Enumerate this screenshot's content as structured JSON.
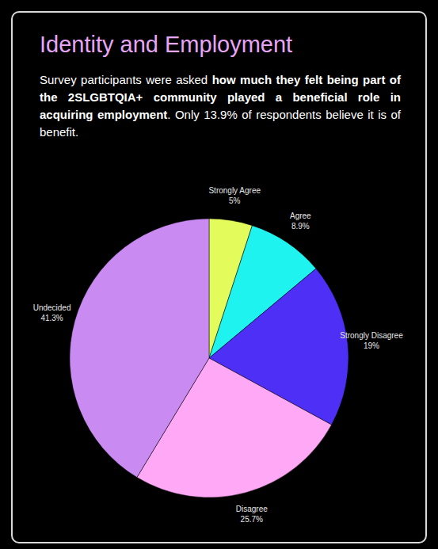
{
  "chart_data": {
    "type": "pie",
    "title": "Identity and Employment",
    "subtitle": [
      "Survey participants were asked ",
      "how much they felt being part of the 2SLGBTQIA+ community played a beneficial role in acquiring employment",
      ". Only 13.9% of respondents believe it is of benefit."
    ],
    "categories": [
      "Strongly Agree",
      "Agree",
      "Strongly Disagree",
      "Disagree",
      "Undecided"
    ],
    "values": [
      5,
      8.9,
      19,
      25.7,
      41.3
    ],
    "value_labels": [
      "5%",
      "8.9%",
      "19%",
      "25.7%",
      "41.3%"
    ],
    "colors": [
      "#e4fb5c",
      "#1ff3ef",
      "#4d2ff5",
      "#ffa9f6",
      "#c98af2"
    ],
    "data_labels": true
  }
}
